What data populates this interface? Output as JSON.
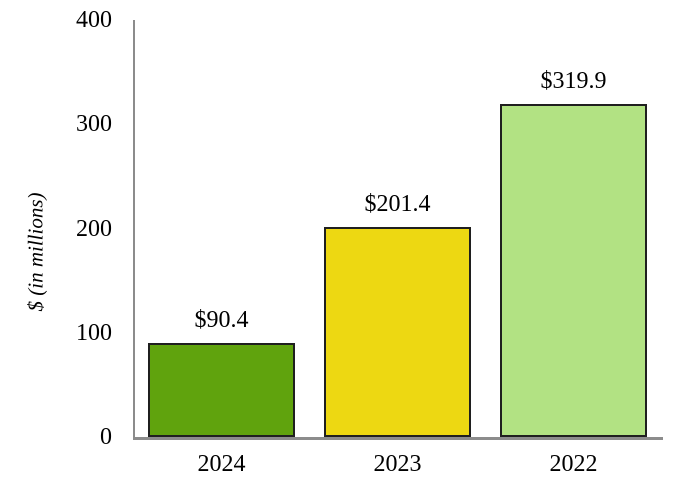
{
  "chart_data": {
    "type": "bar",
    "title": "",
    "categories": [
      "2024",
      "2023",
      "2022"
    ],
    "values": [
      90.4,
      201.4,
      319.9
    ],
    "bar_labels": [
      "$90.4",
      "$201.4",
      "$319.9"
    ],
    "bar_colors": [
      "#60a30d",
      "#edd812",
      "#b2e283"
    ],
    "xlabel": "",
    "ylabel": "$ (in millions)",
    "ylim": [
      0,
      400
    ],
    "yticks": [
      0,
      100,
      200,
      300,
      400
    ],
    "grid": false,
    "legend_position": "none"
  },
  "style": {
    "background_color": "#ffffff",
    "text_color": "#000000",
    "axis_line_color": "#8c8c8c",
    "bar_border_color": "#1f1f1f"
  }
}
